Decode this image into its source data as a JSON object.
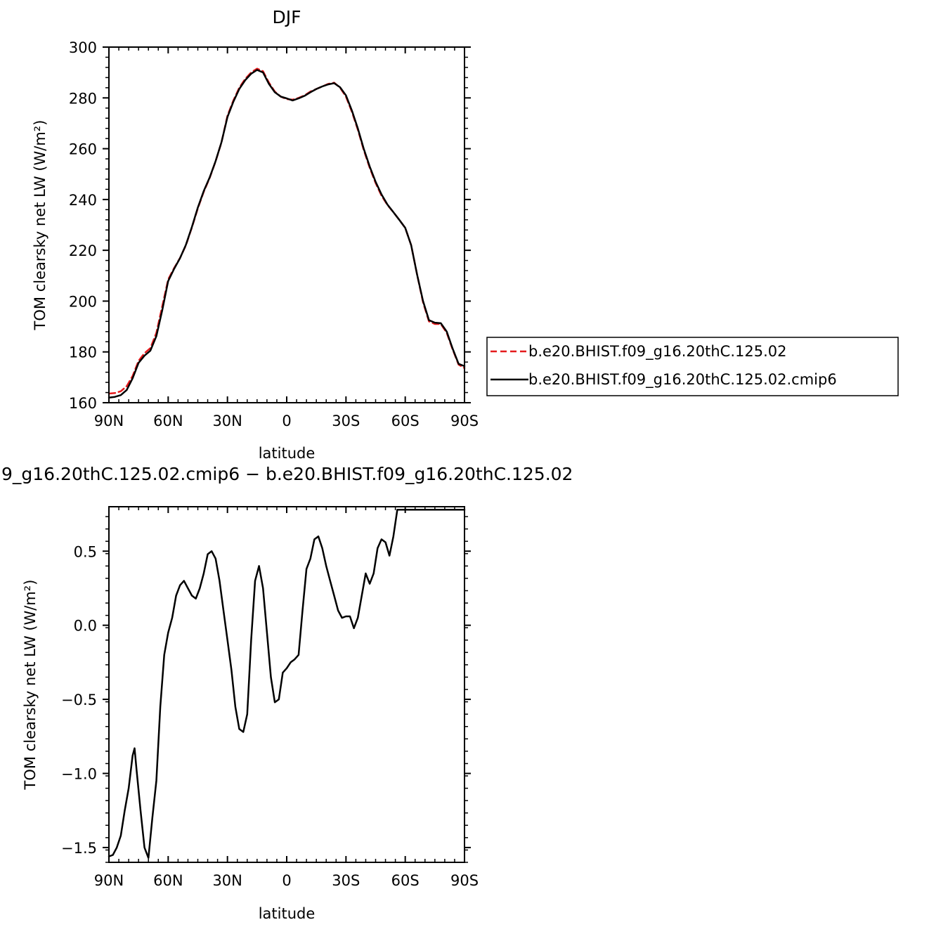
{
  "chart_data": [
    {
      "type": "line",
      "title": "DJF",
      "xlabel": "latitude",
      "ylabel": "TOM clearsky net LW (W/m²)",
      "xlim": [
        -90,
        90
      ],
      "ylim": [
        160,
        300
      ],
      "x_ticks": [
        -90,
        -60,
        -30,
        0,
        30,
        60,
        90
      ],
      "x_tick_labels": [
        "90N",
        "60N",
        "30N",
        "0",
        "30S",
        "60S",
        "90S"
      ],
      "y_ticks": [
        160,
        180,
        200,
        220,
        240,
        260,
        280,
        300
      ],
      "y_tick_labels": [
        "160",
        "180",
        "200",
        "220",
        "240",
        "260",
        "280",
        "300"
      ],
      "legend_position": "right",
      "series": [
        {
          "name": "b.e20.BHIST.f09_g16.20thC.125.02",
          "color": "#e41a1c",
          "dash": "dashed",
          "x": [
            -90,
            -87,
            -84,
            -81,
            -78,
            -75,
            -72,
            -69,
            -66,
            -63,
            -60,
            -57,
            -54,
            -51,
            -48,
            -45,
            -42,
            -39,
            -36,
            -33,
            -30,
            -27,
            -24,
            -21,
            -18,
            -15,
            -12,
            -9,
            -6,
            -3,
            0,
            3,
            6,
            9,
            12,
            15,
            18,
            21,
            24,
            27,
            30,
            33,
            36,
            39,
            42,
            45,
            48,
            51,
            54,
            57,
            60,
            63,
            66,
            69,
            72,
            75,
            78,
            81,
            84,
            87,
            90
          ],
          "y": [
            163.6,
            163.8,
            164.5,
            166.5,
            170.5,
            176.5,
            179.5,
            181.5,
            187.5,
            198.0,
            208.5,
            213.0,
            217.0,
            222.0,
            229.0,
            236.5,
            243.0,
            248.5,
            255.0,
            262.5,
            273.0,
            279.0,
            284.0,
            287.5,
            290.0,
            291.5,
            290.5,
            286.0,
            282.5,
            280.5,
            279.5,
            279.3,
            280.0,
            281.0,
            282.5,
            283.5,
            284.5,
            285.5,
            286.0,
            284.0,
            280.5,
            274.5,
            267.5,
            259.5,
            252.5,
            246.5,
            241.5,
            237.8,
            235.0,
            232.0,
            228.8,
            222.0,
            210.5,
            199.5,
            192.0,
            191.0,
            191.0,
            187.5,
            181.0,
            175.0,
            173.6
          ]
        },
        {
          "name": "b.e20.BHIST.f09_g16.20thC.125.02.cmip6",
          "color": "#000000",
          "dash": "solid",
          "x": [
            -90,
            -87,
            -84,
            -81,
            -78,
            -75,
            -72,
            -69,
            -66,
            -63,
            -60,
            -57,
            -54,
            -51,
            -48,
            -45,
            -42,
            -39,
            -36,
            -33,
            -30,
            -27,
            -24,
            -21,
            -18,
            -15,
            -12,
            -9,
            -6,
            -3,
            0,
            3,
            6,
            9,
            12,
            15,
            18,
            21,
            24,
            27,
            30,
            33,
            36,
            39,
            42,
            45,
            48,
            51,
            54,
            57,
            60,
            63,
            66,
            69,
            72,
            75,
            78,
            81,
            84,
            87,
            90
          ],
          "y": [
            162.0,
            162.3,
            163.0,
            165.0,
            169.6,
            175.7,
            178.5,
            180.5,
            186.2,
            196.4,
            207.9,
            212.7,
            216.9,
            222.2,
            229.2,
            236.8,
            243.3,
            248.7,
            255.1,
            262.6,
            272.5,
            278.5,
            283.5,
            287.0,
            289.5,
            291.0,
            290.0,
            285.5,
            282.2,
            280.5,
            279.8,
            279.0,
            279.8,
            280.8,
            282.2,
            283.5,
            284.5,
            285.3,
            285.8,
            284.2,
            281.0,
            275.0,
            268.0,
            260.0,
            253.0,
            247.0,
            242.0,
            238.0,
            235.0,
            232.0,
            228.8,
            222.0,
            210.5,
            200.0,
            192.5,
            191.5,
            191.3,
            188.0,
            181.3,
            175.3,
            174.4
          ]
        }
      ]
    },
    {
      "type": "line",
      "title": "9_g16.20thC.125.02.cmip6 − b.e20.BHIST.f09_g16.20thC.125.02",
      "xlabel": "latitude",
      "ylabel": "TOM clearsky net LW (W/m²)",
      "xlim": [
        -90,
        90
      ],
      "ylim": [
        -1.6,
        0.8
      ],
      "x_ticks": [
        -90,
        -60,
        -30,
        0,
        30,
        60,
        90
      ],
      "x_tick_labels": [
        "90N",
        "60N",
        "30N",
        "0",
        "30S",
        "60S",
        "90S"
      ],
      "y_ticks": [
        -1.5,
        -1.0,
        -0.5,
        0.0,
        0.5
      ],
      "y_tick_labels": [
        "−1.5",
        "−1.0",
        "−0.5",
        "0.0",
        "0.5"
      ],
      "series": [
        {
          "color": "#000000",
          "dash": "solid",
          "x": [
            -90,
            -88,
            -86,
            -84,
            -82,
            -80,
            -78,
            -77,
            -76,
            -74,
            -72,
            -70,
            -68,
            -66,
            -64,
            -62,
            -60,
            -58,
            -56,
            -54,
            -52,
            -50,
            -48,
            -46,
            -44,
            -42,
            -40,
            -38,
            -36,
            -34,
            -32,
            -30,
            -28,
            -26,
            -24,
            -22,
            -20,
            -18,
            -16,
            -14,
            -12,
            -10,
            -8,
            -6,
            -4,
            -2,
            0,
            2,
            4,
            6,
            8,
            10,
            12,
            14,
            16,
            18,
            20,
            22,
            24,
            26,
            28,
            30,
            32,
            34,
            36,
            38,
            40,
            42,
            44,
            46,
            48,
            50,
            52,
            54,
            56,
            58,
            60,
            62,
            64,
            66,
            68,
            70,
            72,
            74,
            76,
            78,
            80,
            82,
            84,
            86,
            88,
            90
          ],
          "y": [
            -1.56,
            -1.55,
            -1.5,
            -1.42,
            -1.25,
            -1.1,
            -0.88,
            -0.83,
            -0.98,
            -1.25,
            -1.5,
            -1.57,
            -1.3,
            -1.05,
            -0.55,
            -0.2,
            -0.05,
            0.05,
            0.2,
            0.27,
            0.3,
            0.25,
            0.2,
            0.18,
            0.25,
            0.35,
            0.48,
            0.5,
            0.45,
            0.3,
            0.1,
            -0.1,
            -0.3,
            -0.55,
            -0.7,
            -0.72,
            -0.6,
            -0.1,
            0.3,
            0.4,
            0.25,
            -0.05,
            -0.35,
            -0.52,
            -0.5,
            -0.32,
            -0.29,
            -0.25,
            -0.23,
            -0.2,
            0.1,
            0.38,
            0.45,
            0.58,
            0.6,
            0.52,
            0.4,
            0.3,
            0.2,
            0.1,
            0.05,
            0.06,
            0.06,
            -0.02,
            0.05,
            0.2,
            0.35,
            0.28,
            0.35,
            0.52,
            0.58,
            0.56,
            0.47,
            0.6,
            0.78,
            0.78,
            0.78,
            0.78,
            0.78,
            0.78,
            0.78,
            0.78,
            0.78,
            0.78,
            0.78,
            0.78,
            0.78,
            0.78,
            0.78,
            0.78,
            0.78,
            0.78
          ]
        }
      ]
    }
  ]
}
